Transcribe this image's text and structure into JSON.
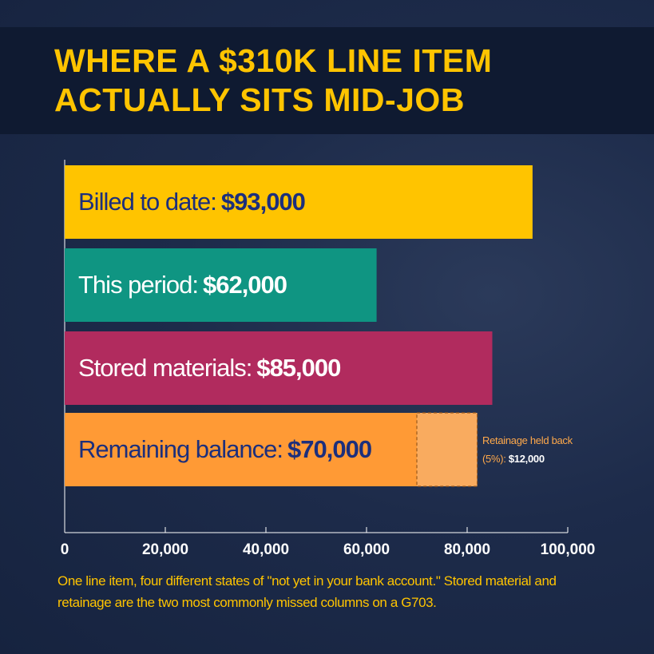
{
  "chart_data": {
    "type": "bar",
    "orientation": "horizontal",
    "title": "WHERE A $310K LINE ITEM ACTUALLY SITS MID-JOB",
    "categories": [
      "Billed to date:",
      "This period:",
      "Stored materials:",
      "Remaining balance:"
    ],
    "series": [
      {
        "values": [
          93000,
          62000,
          85000,
          70000
        ],
        "value_labels": [
          "$93,000",
          "$62,000",
          "$85,000",
          "$70,000"
        ],
        "colors": [
          "#ffc400",
          "#0f9582",
          "#b12b5e",
          "#ff9a35"
        ]
      },
      {
        "name": "Retainage held back (5%):",
        "values": [
          null,
          null,
          null,
          12000
        ],
        "value_labels": [
          null,
          null,
          null,
          "$12,000"
        ],
        "color": "#f9ab5f"
      }
    ],
    "xlim": [
      0,
      100000
    ],
    "xticks": [
      0,
      {
        "value": 20000,
        "label": "20,000"
      },
      {
        "value": 40000,
        "label": "40,000"
      },
      {
        "value": 60000,
        "label": "60,000"
      },
      {
        "value": 80000,
        "label": "80,000"
      },
      {
        "value": 100000,
        "label": "100,000"
      }
    ],
    "caption": "One line item, four different states of \"not yet in your bank account.\" Stored material and retainage are the two most commonly missed columns on a G703."
  }
}
